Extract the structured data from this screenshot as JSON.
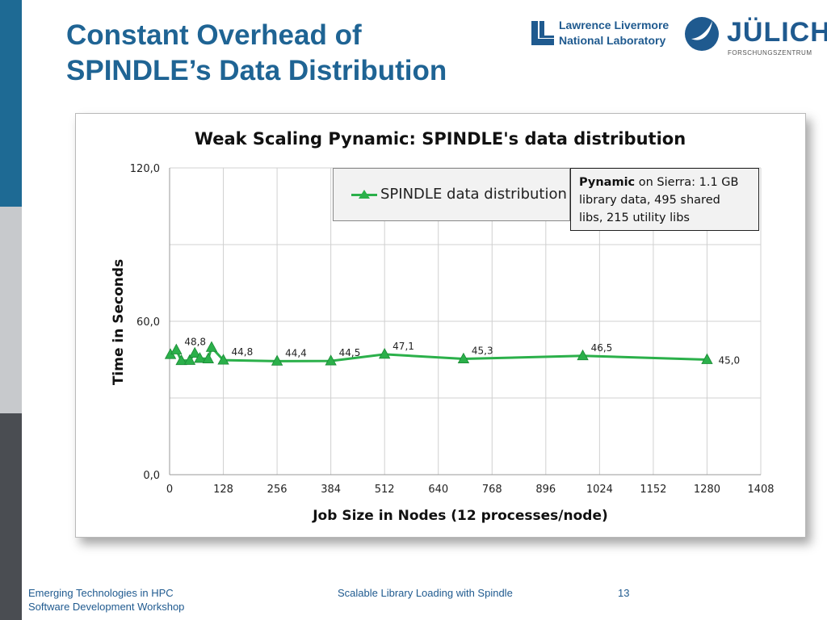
{
  "slide": {
    "title_line1": "Constant Overhead of",
    "title_line2": "SPINDLE’s Data Distribution"
  },
  "logos": {
    "llnl_line1": "Lawrence Livermore",
    "llnl_line2": "National Laboratory",
    "julich_name": "JÜLICH",
    "julich_sub": "FORSCHUNGSZENTRUM"
  },
  "footer": {
    "left_line1": "Emerging Technologies in HPC",
    "left_line2": "Software Development Workshop",
    "center": "Scalable Library Loading with Spindle",
    "page_number": "13"
  },
  "note": {
    "bold": "Pynamic",
    "line1_rest": " on Sierra: 1.1 GB",
    "line2": "library data,  495 shared",
    "line3": "libs, 215 utility libs"
  },
  "colors": {
    "series": "#2bb04a",
    "title": "#1f6494"
  },
  "chart_data": {
    "type": "line",
    "title": "Weak Scaling Pynamic: SPINDLE's data distribution",
    "xlabel": "Job Size in Nodes (12 processes/node)",
    "ylabel": "Time in Seconds",
    "xlim": [
      0,
      1408
    ],
    "ylim": [
      0,
      120
    ],
    "x_ticks": [
      "0",
      "128",
      "256",
      "384",
      "512",
      "640",
      "768",
      "896",
      "1024",
      "1152",
      "1280",
      "1408"
    ],
    "y_ticks": [
      "0,0",
      "60,0",
      "120,0"
    ],
    "grid": true,
    "legend": "top-center",
    "series": [
      {
        "name": "SPINDLE data distribution",
        "points": [
          {
            "x": 2,
            "y": 47.0,
            "label": ""
          },
          {
            "x": 16,
            "y": 48.8,
            "label": "48,8"
          },
          {
            "x": 28,
            "y": 44.6,
            "label": ""
          },
          {
            "x": 48,
            "y": 44.7,
            "label": ""
          },
          {
            "x": 60,
            "y": 47.5,
            "label": ""
          },
          {
            "x": 72,
            "y": 45.5,
            "label": ""
          },
          {
            "x": 92,
            "y": 45.3,
            "label": ""
          },
          {
            "x": 100,
            "y": 49.8,
            "label": ""
          },
          {
            "x": 128,
            "y": 44.8,
            "label": "44,8"
          },
          {
            "x": 256,
            "y": 44.4,
            "label": "44,4"
          },
          {
            "x": 384,
            "y": 44.5,
            "label": "44,5"
          },
          {
            "x": 512,
            "y": 47.1,
            "label": "47,1"
          },
          {
            "x": 700,
            "y": 45.3,
            "label": "45,3"
          },
          {
            "x": 984,
            "y": 46.5,
            "label": "46,5"
          },
          {
            "x": 1280,
            "y": 45.0,
            "label": "45,0"
          }
        ]
      }
    ]
  }
}
